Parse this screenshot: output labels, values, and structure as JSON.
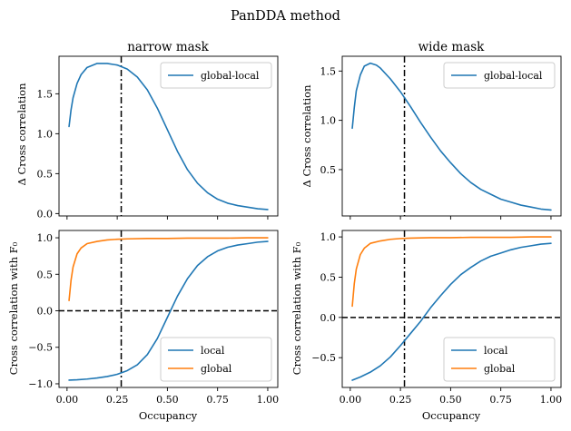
{
  "figure": {
    "title": "PanDDA method"
  },
  "chart_data": [
    {
      "type": "line",
      "title": "narrow mask",
      "xlabel": "",
      "ylabel": "Δ Cross correlation",
      "xlim": [
        -0.04,
        1.05
      ],
      "ylim": [
        -0.03,
        1.97
      ],
      "xticks": [
        0.0,
        0.25,
        0.5,
        0.75,
        1.0
      ],
      "xticklabels": [
        "",
        "",
        "",
        "",
        ""
      ],
      "yticks": [
        0.0,
        0.5,
        1.0,
        1.5
      ],
      "yticklabels": [
        "0.0",
        "0.5",
        "1.0",
        "1.5"
      ],
      "legend": "upper right",
      "grid": false,
      "series": [
        {
          "name": "global-local",
          "color": "#1f77b4",
          "x": [
            0.01,
            0.02,
            0.03,
            0.05,
            0.07,
            0.1,
            0.15,
            0.2,
            0.25,
            0.3,
            0.35,
            0.4,
            0.45,
            0.5,
            0.55,
            0.6,
            0.65,
            0.7,
            0.75,
            0.8,
            0.85,
            0.9,
            0.95,
            1.0
          ],
          "y": [
            1.09,
            1.3,
            1.45,
            1.63,
            1.74,
            1.83,
            1.88,
            1.88,
            1.86,
            1.81,
            1.71,
            1.55,
            1.32,
            1.05,
            0.78,
            0.55,
            0.38,
            0.26,
            0.18,
            0.13,
            0.1,
            0.08,
            0.06,
            0.05
          ]
        }
      ],
      "vlines": [
        {
          "x": 0.27,
          "style": "dashdot",
          "color": "#000000"
        }
      ],
      "hlines": []
    },
    {
      "type": "line",
      "title": "wide mask",
      "xlabel": "",
      "ylabel": "Δ Cross correlation",
      "xlim": [
        -0.04,
        1.05
      ],
      "ylim": [
        0.03,
        1.65
      ],
      "xticks": [
        0.0,
        0.25,
        0.5,
        0.75,
        1.0
      ],
      "xticklabels": [
        "",
        "",
        "",
        "",
        ""
      ],
      "yticks": [
        0.5,
        1.0,
        1.5
      ],
      "yticklabels": [
        "0.5",
        "1.0",
        "1.5"
      ],
      "legend": "upper right",
      "grid": false,
      "series": [
        {
          "name": "global-local",
          "color": "#1f77b4",
          "x": [
            0.01,
            0.02,
            0.03,
            0.05,
            0.07,
            0.1,
            0.13,
            0.15,
            0.2,
            0.25,
            0.3,
            0.35,
            0.4,
            0.45,
            0.5,
            0.55,
            0.6,
            0.65,
            0.7,
            0.75,
            0.8,
            0.85,
            0.9,
            0.95,
            1.0
          ],
          "y": [
            0.92,
            1.13,
            1.3,
            1.46,
            1.55,
            1.58,
            1.56,
            1.53,
            1.42,
            1.29,
            1.14,
            0.98,
            0.83,
            0.69,
            0.57,
            0.46,
            0.37,
            0.3,
            0.25,
            0.2,
            0.17,
            0.14,
            0.12,
            0.1,
            0.09
          ]
        }
      ],
      "vlines": [
        {
          "x": 0.27,
          "style": "dashdot",
          "color": "#000000"
        }
      ],
      "hlines": []
    },
    {
      "type": "line",
      "title": "",
      "xlabel": "Occupancy",
      "ylabel": "Cross correlation with F₀",
      "xlim": [
        -0.04,
        1.05
      ],
      "ylim": [
        -1.05,
        1.1
      ],
      "xticks": [
        0.0,
        0.25,
        0.5,
        0.75,
        1.0
      ],
      "xticklabels": [
        "0.00",
        "0.25",
        "0.50",
        "0.75",
        "1.00"
      ],
      "yticks": [
        -1.0,
        -0.5,
        0.0,
        0.5,
        1.0
      ],
      "yticklabels": [
        "−1.0",
        "−0.5",
        "0.0",
        "0.5",
        "1.0"
      ],
      "legend": "lower right",
      "grid": false,
      "series": [
        {
          "name": "local",
          "color": "#1f77b4",
          "x": [
            0.01,
            0.05,
            0.1,
            0.15,
            0.2,
            0.25,
            0.3,
            0.35,
            0.4,
            0.45,
            0.5,
            0.55,
            0.6,
            0.65,
            0.7,
            0.75,
            0.8,
            0.85,
            0.9,
            0.95,
            1.0
          ],
          "y": [
            -0.95,
            -0.945,
            -0.935,
            -0.92,
            -0.9,
            -0.87,
            -0.82,
            -0.74,
            -0.6,
            -0.38,
            -0.09,
            0.2,
            0.44,
            0.62,
            0.74,
            0.82,
            0.87,
            0.9,
            0.92,
            0.94,
            0.95
          ]
        },
        {
          "name": "global",
          "color": "#ff7f0e",
          "x": [
            0.01,
            0.02,
            0.03,
            0.05,
            0.07,
            0.1,
            0.15,
            0.2,
            0.25,
            0.3,
            0.4,
            0.5,
            0.6,
            0.7,
            0.8,
            0.9,
            1.0
          ],
          "y": [
            0.14,
            0.42,
            0.6,
            0.78,
            0.86,
            0.92,
            0.95,
            0.97,
            0.98,
            0.985,
            0.99,
            0.99,
            0.995,
            0.995,
            0.995,
            1.0,
            1.0
          ]
        }
      ],
      "vlines": [
        {
          "x": 0.27,
          "style": "dashdot",
          "color": "#000000"
        }
      ],
      "hlines": [
        {
          "y": 0.0,
          "style": "dashed",
          "color": "#000000"
        }
      ]
    },
    {
      "type": "line",
      "title": "",
      "xlabel": "Occupancy",
      "ylabel": "Cross correlation with F₀",
      "xlim": [
        -0.04,
        1.05
      ],
      "ylim": [
        -0.87,
        1.08
      ],
      "xticks": [
        0.0,
        0.25,
        0.5,
        0.75,
        1.0
      ],
      "xticklabels": [
        "0.00",
        "0.25",
        "0.50",
        "0.75",
        "1.00"
      ],
      "yticks": [
        -0.5,
        0.0,
        0.5,
        1.0
      ],
      "yticklabels": [
        "−0.5",
        "0.0",
        "0.5",
        "1.0"
      ],
      "legend": "lower right",
      "grid": false,
      "series": [
        {
          "name": "local",
          "color": "#1f77b4",
          "x": [
            0.01,
            0.05,
            0.1,
            0.15,
            0.2,
            0.25,
            0.3,
            0.35,
            0.4,
            0.45,
            0.5,
            0.55,
            0.6,
            0.65,
            0.7,
            0.75,
            0.8,
            0.85,
            0.9,
            0.95,
            1.0
          ],
          "y": [
            -0.78,
            -0.74,
            -0.68,
            -0.6,
            -0.49,
            -0.35,
            -0.2,
            -0.05,
            0.12,
            0.27,
            0.41,
            0.53,
            0.62,
            0.7,
            0.76,
            0.8,
            0.84,
            0.87,
            0.89,
            0.91,
            0.92
          ]
        },
        {
          "name": "global",
          "color": "#ff7f0e",
          "x": [
            0.01,
            0.02,
            0.03,
            0.05,
            0.07,
            0.1,
            0.15,
            0.2,
            0.25,
            0.3,
            0.4,
            0.5,
            0.6,
            0.7,
            0.8,
            0.9,
            1.0
          ],
          "y": [
            0.14,
            0.42,
            0.6,
            0.78,
            0.86,
            0.92,
            0.95,
            0.97,
            0.98,
            0.985,
            0.99,
            0.99,
            0.995,
            0.995,
            0.995,
            1.0,
            1.0
          ]
        }
      ],
      "vlines": [
        {
          "x": 0.27,
          "style": "dashdot",
          "color": "#000000"
        }
      ],
      "hlines": [
        {
          "y": 0.0,
          "style": "dashed",
          "color": "#000000"
        }
      ]
    }
  ]
}
